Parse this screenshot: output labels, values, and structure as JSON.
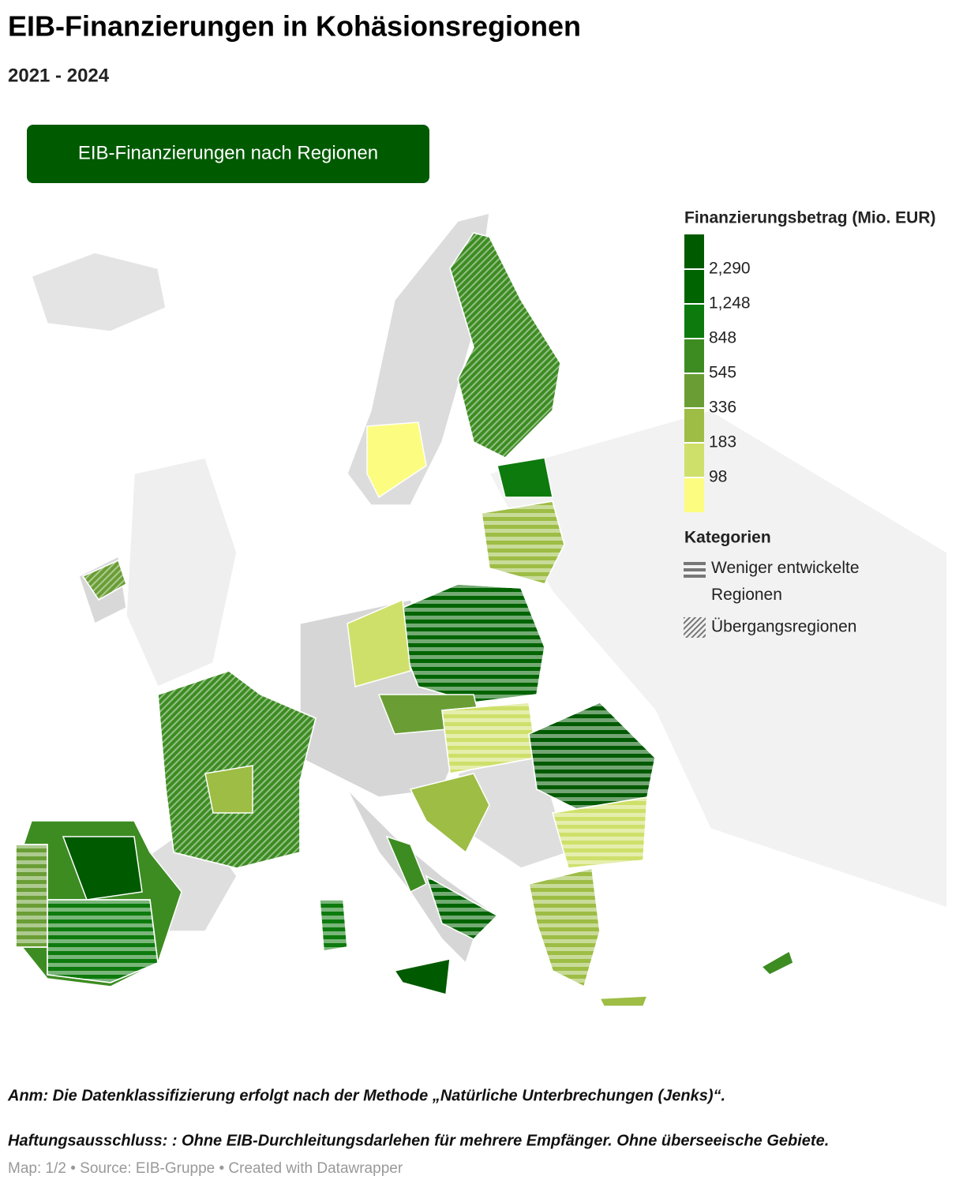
{
  "header": {
    "title": "EIB-Finanzierungen in Kohäsionsregionen",
    "subtitle": "2021 - 2024"
  },
  "button": {
    "label": "EIB-Finanzierungen nach Regionen"
  },
  "legend": {
    "title": "Finanzierungsbetrag (Mio. EUR)",
    "colors": [
      "#005a00",
      "#006400",
      "#0d7a0d",
      "#3d8c22",
      "#6a9e35",
      "#9dbd45",
      "#cfe06a",
      "#fcfc80"
    ],
    "ticks": [
      "2,290",
      "1,248",
      "848",
      "545",
      "336",
      "183",
      "98"
    ],
    "categories_title": "Kategorien",
    "categories": [
      "Weniger entwickelte Regionen",
      "Übergangsregionen"
    ]
  },
  "notes": [
    "Anm: Die Datenklassifizierung erfolgt nach der Methode „Natürliche Unterbrechungen (Jenks)“.",
    "Haftungsausschluss: : Ohne EIB-Durchleitungsdarlehen für mehrere Empfänger. Ohne überseeische Gebiete."
  ],
  "footer": "Map: 1/2 • Source: EIB-Gruppe • Created with Datawrapper"
}
